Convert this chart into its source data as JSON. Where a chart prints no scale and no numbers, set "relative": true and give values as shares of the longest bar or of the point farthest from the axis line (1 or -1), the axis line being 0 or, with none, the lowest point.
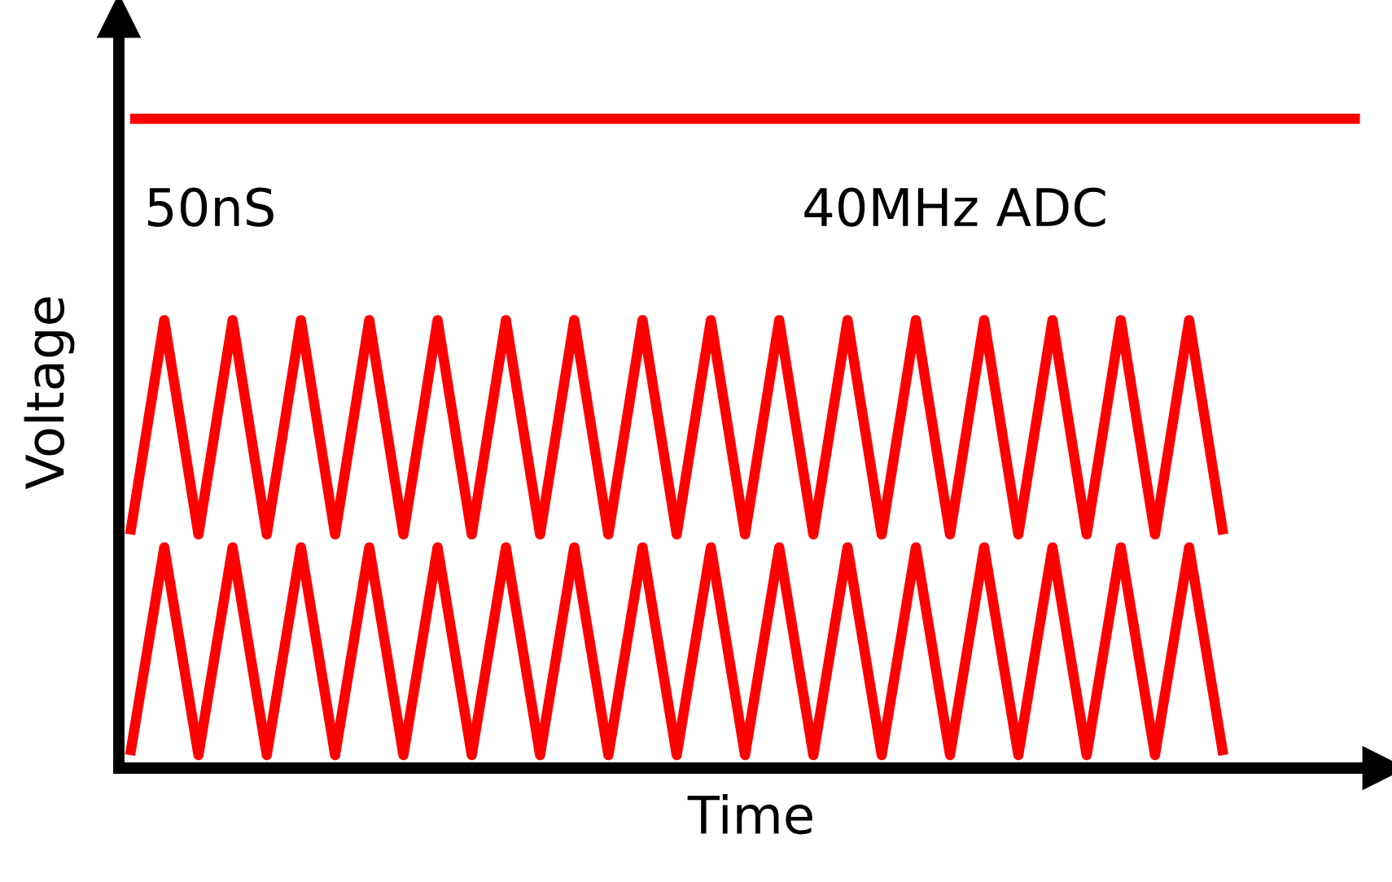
{
  "chart_data": {
    "type": "line",
    "relative": true,
    "xlabel": "Time",
    "ylabel": "Voltage",
    "annotations": [
      "50nS",
      "40MHz ADC"
    ],
    "categories": [
      null,
      null,
      null,
      null,
      null,
      null,
      null,
      null,
      null,
      null,
      null,
      null,
      null,
      null,
      null,
      null,
      null,
      null,
      null,
      null,
      null,
      null,
      null,
      null,
      null,
      null,
      null,
      null,
      null,
      null,
      null,
      null,
      null,
      null,
      null,
      null,
      null
    ],
    "series": [
      {
        "color": "#ff0000",
        "values": [
          1,
          1,
          1,
          1,
          1,
          1,
          1,
          1,
          1,
          1,
          1,
          1,
          1,
          1,
          1,
          1,
          1,
          1,
          1,
          1,
          1,
          1,
          1,
          1,
          1,
          1,
          1,
          1,
          1,
          1,
          1,
          1,
          1,
          1,
          1,
          1,
          1
        ]
      },
      {
        "color": "#ff0000",
        "values": [
          0.36,
          0.69,
          0.36,
          0.69,
          0.36,
          0.69,
          0.36,
          0.69,
          0.36,
          0.69,
          0.36,
          0.69,
          0.36,
          0.69,
          0.36,
          0.69,
          0.36,
          0.69,
          0.36,
          0.69,
          0.36,
          0.69,
          0.36,
          0.69,
          0.36,
          0.69,
          0.36,
          0.69,
          0.36,
          0.69,
          0.36,
          0.69,
          0.36,
          null,
          null,
          null,
          null
        ]
      },
      {
        "color": "#ff0000",
        "values": [
          0.02,
          0.34,
          0.02,
          0.34,
          0.02,
          0.34,
          0.02,
          0.34,
          0.02,
          0.34,
          0.02,
          0.34,
          0.02,
          0.34,
          0.02,
          0.34,
          0.02,
          0.34,
          0.02,
          0.34,
          0.02,
          0.34,
          0.02,
          0.34,
          0.02,
          0.34,
          0.02,
          0.34,
          0.02,
          0.34,
          0.02,
          0.34,
          0.02,
          null,
          null,
          null,
          null
        ]
      }
    ],
    "grid": false,
    "legend": false,
    "marker": "none",
    "line_style": "solid"
  }
}
